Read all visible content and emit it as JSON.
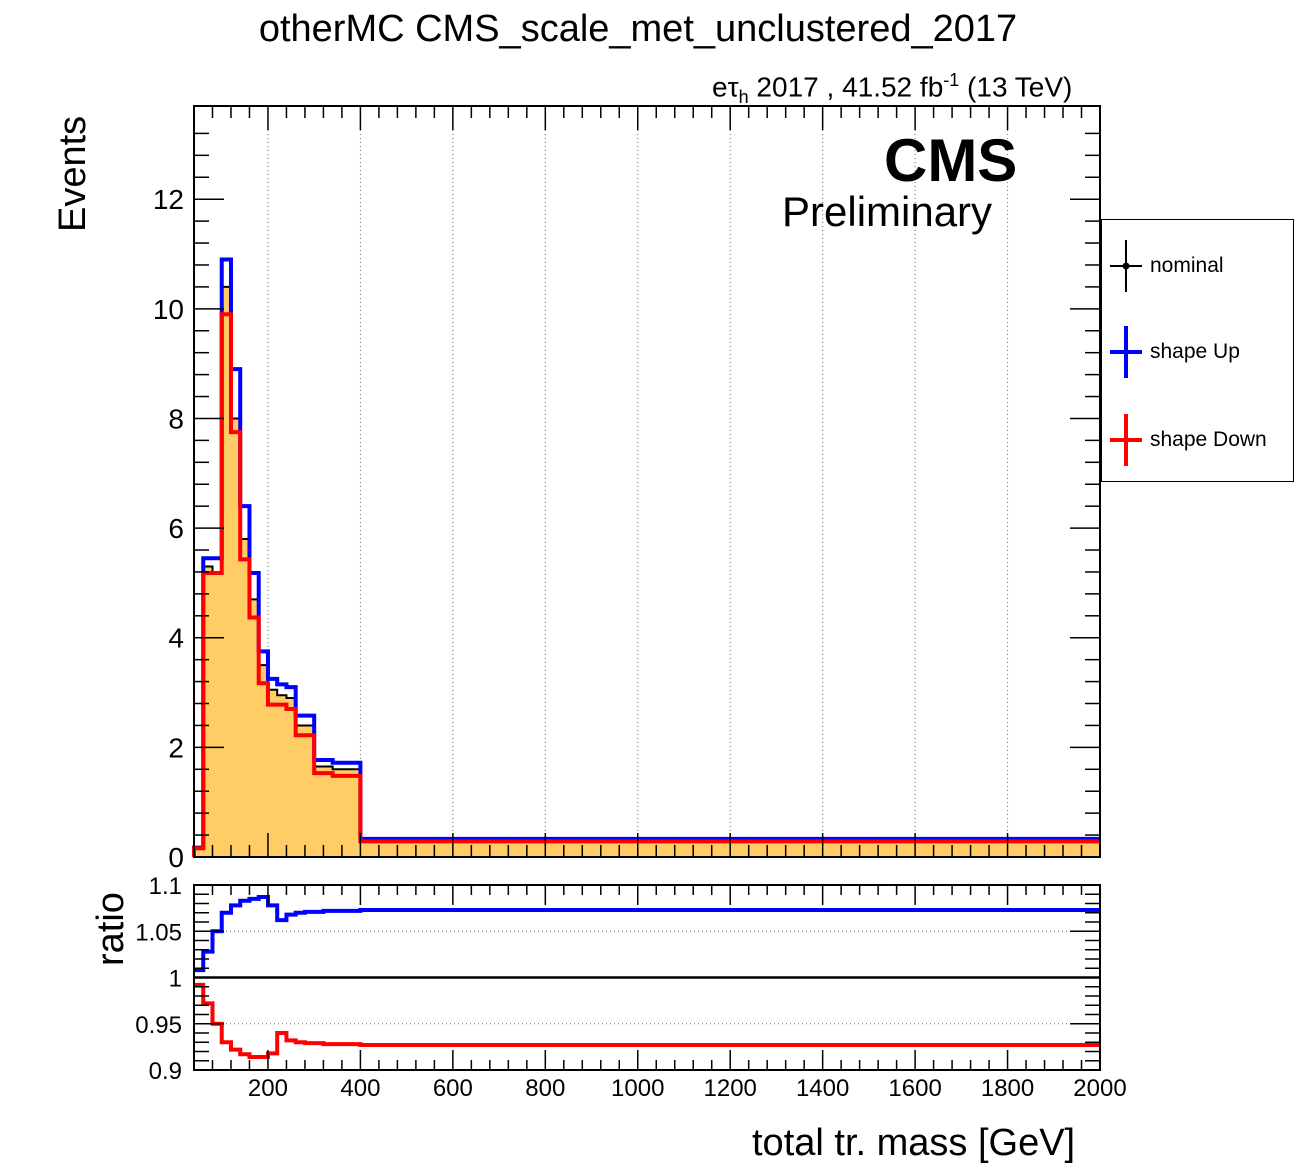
{
  "title": "otherMC CMS_scale_met_unclustered_2017",
  "lumi": {
    "channel_base": "eτ",
    "channel_sub": "h",
    "text": " 2017 , 41.52 fb",
    "sup": "-1",
    "energy": " (13 TeV)"
  },
  "cms_label": "CMS",
  "preliminary_label": "Preliminary",
  "legend": {
    "entries": [
      {
        "label": "nominal",
        "color": "#000000"
      },
      {
        "label": "shape Up",
        "color": "#0000ff"
      },
      {
        "label": "shape Down",
        "color": "#ff0000"
      }
    ]
  },
  "colors": {
    "fill": "#ffcc66",
    "nominal": "#000000",
    "up": "#0000ff",
    "down": "#ff0000"
  },
  "chart_data": [
    {
      "type": "line",
      "panel": "main",
      "ylabel": "Events",
      "xlim": [
        40,
        2000
      ],
      "ylim": [
        0,
        13.7
      ],
      "xticks": [
        200,
        400,
        600,
        800,
        1000,
        1200,
        1400,
        1600,
        1800,
        2000
      ],
      "yticks": [
        0,
        2,
        4,
        6,
        8,
        10,
        12
      ],
      "grid": "vertical",
      "bin_edges": [
        40,
        60,
        80,
        100,
        120,
        140,
        160,
        180,
        200,
        220,
        240,
        260,
        280,
        300,
        320,
        340,
        360,
        380,
        400,
        2000
      ],
      "series": [
        {
          "name": "nominal",
          "style": "filled",
          "values": [
            0.16,
            5.3,
            5.2,
            10.4,
            8.0,
            5.8,
            4.7,
            3.5,
            3.05,
            2.95,
            2.9,
            2.4,
            2.4,
            1.65,
            1.65,
            1.6,
            1.6,
            1.6,
            0.31
          ]
        },
        {
          "name": "shape Up",
          "values": [
            0.17,
            5.45,
            5.45,
            10.9,
            8.9,
            6.4,
            5.18,
            3.75,
            3.25,
            3.15,
            3.1,
            2.58,
            2.58,
            1.77,
            1.77,
            1.72,
            1.72,
            1.72,
            0.33
          ]
        },
        {
          "name": "shape Down",
          "values": [
            0.16,
            5.18,
            5.18,
            9.9,
            7.75,
            5.43,
            4.37,
            3.17,
            2.78,
            2.78,
            2.7,
            2.22,
            2.22,
            1.53,
            1.53,
            1.48,
            1.48,
            1.48,
            0.285
          ]
        }
      ]
    },
    {
      "type": "line",
      "panel": "ratio",
      "xlabel": "total tr. mass [GeV]",
      "ylabel": "ratio",
      "xlim": [
        40,
        2000
      ],
      "ylim": [
        0.9,
        1.1
      ],
      "xticks": [
        200,
        400,
        600,
        800,
        1000,
        1200,
        1400,
        1600,
        1800,
        2000
      ],
      "yticks": [
        0.9,
        0.95,
        1,
        1.05,
        1.1
      ],
      "grid": "horizontal",
      "reference_line": 1,
      "bin_edges": [
        40,
        60,
        80,
        100,
        120,
        140,
        160,
        180,
        200,
        220,
        240,
        260,
        280,
        300,
        320,
        340,
        360,
        380,
        400,
        2000
      ],
      "series": [
        {
          "name": "shape Up",
          "values": [
            1.008,
            1.028,
            1.05,
            1.07,
            1.078,
            1.083,
            1.085,
            1.087,
            1.078,
            1.062,
            1.068,
            1.07,
            1.071,
            1.071,
            1.072,
            1.072,
            1.072,
            1.072,
            1.073
          ]
        },
        {
          "name": "shape Down",
          "values": [
            0.992,
            0.972,
            0.95,
            0.93,
            0.922,
            0.917,
            0.914,
            0.914,
            0.918,
            0.94,
            0.932,
            0.93,
            0.929,
            0.929,
            0.928,
            0.928,
            0.928,
            0.928,
            0.927
          ]
        }
      ]
    }
  ]
}
